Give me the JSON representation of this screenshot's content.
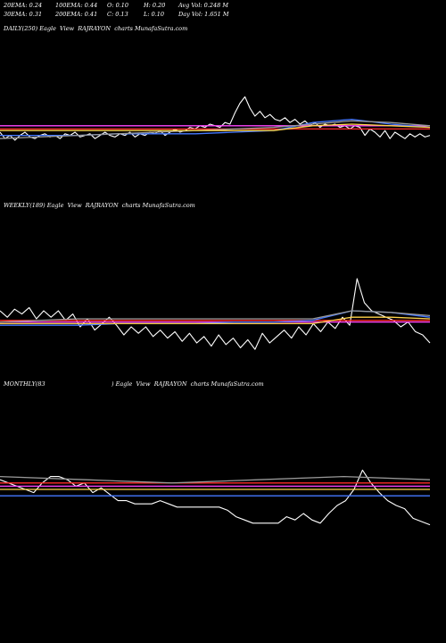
{
  "header": {
    "ema20": "20EMA: 0.24",
    "ema100": "100EMA: 0.44",
    "open": "O: 0.10",
    "high": "H: 0.20",
    "avg_vol": "Avg Vol: 0.248 M",
    "ema30": "30EMA: 0.31",
    "ema200": "200EMA: 0.41",
    "close": "C: 0.13",
    "low": "L: 0.10",
    "day_vol": "Day Vol: 1.651 M"
  },
  "chart_data": [
    {
      "type": "line",
      "title": "DAILY(250) Eagle  View  RAJRAYON  charts MunafaSutra.com",
      "background": "#000000",
      "ylim": [
        0,
        1
      ],
      "series": [
        {
          "color": "#ffffff",
          "y": [
            0.4,
            0.36,
            0.38,
            0.35,
            0.38,
            0.4,
            0.37,
            0.36,
            0.38,
            0.39,
            0.37,
            0.38,
            0.36,
            0.39,
            0.38,
            0.4,
            0.37,
            0.38,
            0.39,
            0.36,
            0.38,
            0.4,
            0.38,
            0.37,
            0.39,
            0.38,
            0.4,
            0.37,
            0.39,
            0.38,
            0.4,
            0.39,
            0.41,
            0.38,
            0.4,
            0.42,
            0.4,
            0.41,
            0.43,
            0.42,
            0.44,
            0.43,
            0.45,
            0.44,
            0.43,
            0.46,
            0.45,
            0.52,
            0.58,
            0.62,
            0.55,
            0.5,
            0.53,
            0.49,
            0.51,
            0.48,
            0.47,
            0.49,
            0.46,
            0.48,
            0.45,
            0.47,
            0.44,
            0.46,
            0.43,
            0.45,
            0.44,
            0.45,
            0.43,
            0.44,
            0.42,
            0.44,
            0.43,
            0.38,
            0.42,
            0.4,
            0.37,
            0.41,
            0.36,
            0.4,
            0.38,
            0.36,
            0.39,
            0.37,
            0.39,
            0.37,
            0.38
          ]
        },
        {
          "color": "#ff2a2a",
          "y": [
            0.42,
            0.42,
            0.42,
            0.42,
            0.42,
            0.42,
            0.42,
            0.42,
            0.42,
            0.42,
            0.42,
            0.42
          ]
        },
        {
          "color": "#ff44ff",
          "y": [
            0.44,
            0.44,
            0.44,
            0.44,
            0.44,
            0.44,
            0.44,
            0.44,
            0.44,
            0.44,
            0.44,
            0.44
          ]
        },
        {
          "color": "#4477ff",
          "y": [
            0.38,
            0.38,
            0.38,
            0.39,
            0.39,
            0.39,
            0.4,
            0.41,
            0.46,
            0.48,
            0.45,
            0.43
          ]
        },
        {
          "color": "#999999",
          "y": [
            0.36,
            0.37,
            0.38,
            0.39,
            0.4,
            0.41,
            0.42,
            0.43,
            0.45,
            0.47,
            0.46,
            0.44
          ]
        },
        {
          "color": "#ffd24a",
          "y": [
            0.41,
            0.41,
            0.41,
            0.41,
            0.41,
            0.41,
            0.41,
            0.41,
            0.44,
            0.45,
            0.44,
            0.43
          ]
        }
      ]
    },
    {
      "type": "line",
      "title": "WEEKLY(189) Eagle  View  RAJRAYON  charts MunafaSutra.com",
      "background": "#000000",
      "ylim": [
        0,
        1
      ],
      "series": [
        {
          "color": "#ffffff",
          "y": [
            0.4,
            0.36,
            0.41,
            0.38,
            0.42,
            0.35,
            0.4,
            0.36,
            0.4,
            0.34,
            0.38,
            0.3,
            0.35,
            0.28,
            0.32,
            0.36,
            0.31,
            0.25,
            0.3,
            0.26,
            0.3,
            0.24,
            0.28,
            0.23,
            0.27,
            0.21,
            0.26,
            0.2,
            0.24,
            0.18,
            0.25,
            0.19,
            0.23,
            0.17,
            0.22,
            0.16,
            0.26,
            0.2,
            0.24,
            0.28,
            0.23,
            0.3,
            0.25,
            0.32,
            0.27,
            0.33,
            0.29,
            0.36,
            0.31,
            0.6,
            0.45,
            0.4,
            0.38,
            0.36,
            0.34,
            0.3,
            0.33,
            0.27,
            0.25,
            0.2
          ]
        },
        {
          "color": "#ff2a2a",
          "y": [
            0.34,
            0.34,
            0.34,
            0.34,
            0.34,
            0.34,
            0.34,
            0.34,
            0.34,
            0.34,
            0.34,
            0.34
          ]
        },
        {
          "color": "#ff44ff",
          "y": [
            0.33,
            0.33,
            0.33,
            0.33,
            0.33,
            0.33,
            0.33,
            0.33,
            0.33,
            0.33,
            0.33,
            0.33
          ]
        },
        {
          "color": "#4477ff",
          "y": [
            0.31,
            0.31,
            0.31,
            0.32,
            0.32,
            0.32,
            0.33,
            0.33,
            0.34,
            0.4,
            0.39,
            0.36
          ]
        },
        {
          "color": "#999999",
          "y": [
            0.33,
            0.34,
            0.35,
            0.35,
            0.35,
            0.35,
            0.35,
            0.35,
            0.35,
            0.4,
            0.39,
            0.37
          ]
        },
        {
          "color": "#ffd24a",
          "y": [
            0.32,
            0.32,
            0.32,
            0.32,
            0.32,
            0.32,
            0.32,
            0.32,
            0.32,
            0.36,
            0.36,
            0.35
          ]
        }
      ]
    },
    {
      "type": "line",
      "title": "MONTHLY(83                                    ) Eagle  View  RAJRAYON  charts MunafaSutra.com",
      "background": "#000000",
      "ylim": [
        0,
        1
      ],
      "series": [
        {
          "color": "#ffffff",
          "y": [
            0.46,
            0.44,
            0.42,
            0.4,
            0.38,
            0.44,
            0.48,
            0.48,
            0.46,
            0.42,
            0.44,
            0.38,
            0.41,
            0.37,
            0.33,
            0.33,
            0.31,
            0.31,
            0.31,
            0.33,
            0.31,
            0.29,
            0.29,
            0.29,
            0.29,
            0.29,
            0.29,
            0.27,
            0.23,
            0.21,
            0.19,
            0.19,
            0.19,
            0.19,
            0.23,
            0.21,
            0.25,
            0.21,
            0.19,
            0.25,
            0.3,
            0.33,
            0.4,
            0.52,
            0.44,
            0.38,
            0.33,
            0.3,
            0.28,
            0.22,
            0.2,
            0.18
          ]
        },
        {
          "color": "#ff2a2a",
          "y": [
            0.44,
            0.44,
            0.44,
            0.44,
            0.44,
            0.44
          ]
        },
        {
          "color": "#ff44ff",
          "y": [
            0.42,
            0.42,
            0.42,
            0.42,
            0.42,
            0.42
          ]
        },
        {
          "color": "#4477ff",
          "y": [
            0.36,
            0.36,
            0.36,
            0.36,
            0.36,
            0.36
          ]
        },
        {
          "color": "#999999",
          "y": [
            0.48,
            0.46,
            0.44,
            0.46,
            0.48,
            0.46
          ]
        },
        {
          "color": "#ffd24a",
          "y": [
            0.4,
            0.4,
            0.4,
            0.4,
            0.4,
            0.4
          ]
        }
      ]
    }
  ]
}
